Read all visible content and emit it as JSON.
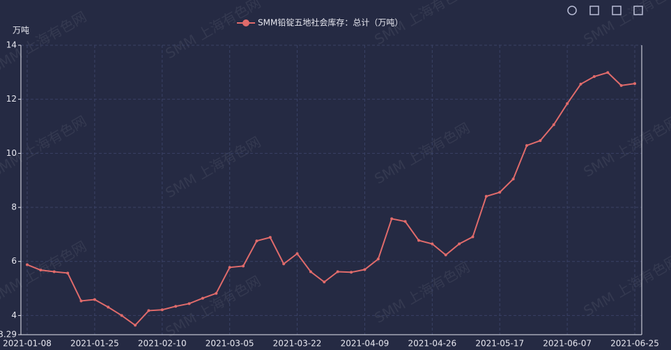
{
  "chart_data": {
    "type": "line",
    "legend": "SMM铅锭五地社会库存：总计（万吨）",
    "y_axis_label": "万吨",
    "watermark": "SMM 上海有色网",
    "categories": [
      "2021-01-08",
      null,
      null,
      null,
      null,
      "2021-01-25",
      null,
      null,
      null,
      null,
      "2021-02-10",
      null,
      null,
      null,
      null,
      "2021-03-05",
      null,
      null,
      null,
      null,
      "2021-03-22",
      null,
      null,
      null,
      null,
      "2021-04-09",
      null,
      null,
      null,
      null,
      "2021-04-26",
      null,
      null,
      null,
      null,
      "2021-05-17",
      null,
      null,
      null,
      null,
      "2021-06-07",
      null,
      null,
      null,
      null,
      "2021-06-25"
    ],
    "series": [
      {
        "name": "SMM铅锭五地社会库存：总计（万吨）",
        "color": "#e06b6b",
        "values": [
          5.88,
          5.68,
          5.62,
          5.57,
          4.54,
          4.59,
          4.31,
          4.0,
          3.64,
          4.18,
          4.21,
          4.34,
          4.44,
          4.64,
          4.82,
          5.78,
          5.83,
          6.76,
          6.89,
          5.91,
          6.29,
          5.62,
          5.24,
          5.62,
          5.6,
          5.7,
          6.09,
          7.58,
          7.48,
          6.78,
          6.65,
          6.24,
          6.65,
          6.91,
          8.41,
          8.56,
          9.05,
          10.29,
          10.47,
          11.06,
          11.84,
          12.56,
          12.84,
          12.99,
          12.51,
          12.58
        ]
      }
    ],
    "ylim": [
      3.29,
      14
    ],
    "yticks": [
      3.29,
      4,
      6,
      8,
      10,
      12,
      14
    ],
    "grid": true
  }
}
